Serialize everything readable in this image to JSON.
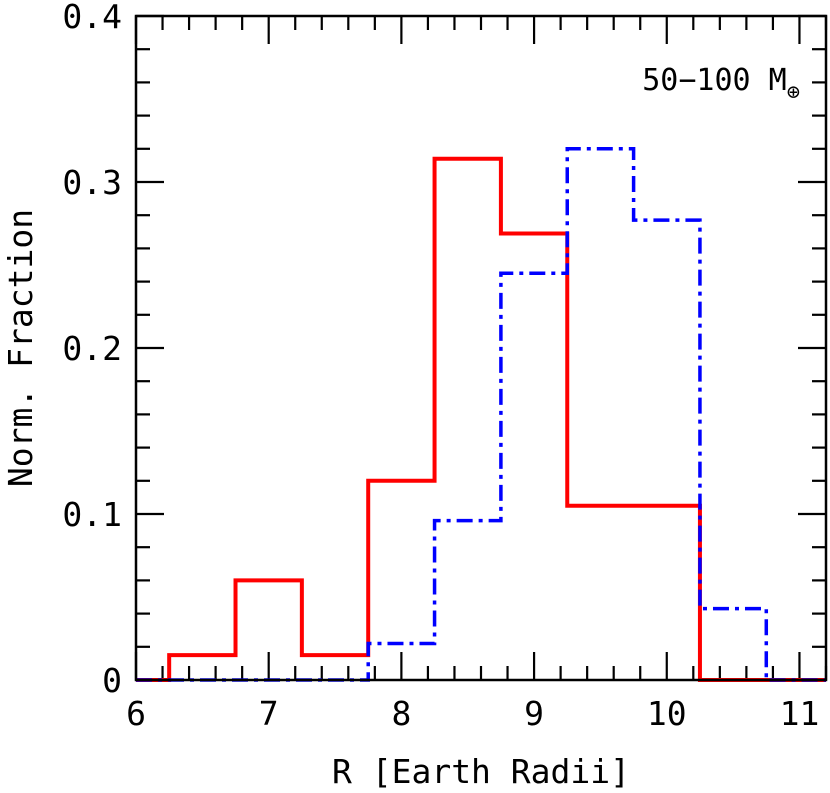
{
  "chart_data": {
    "type": "histogram",
    "title": "",
    "xlabel": "R [Earth Radii]",
    "ylabel": "Norm. Fraction",
    "annotation": {
      "text": "50−100 M",
      "subscript": "⊕",
      "placement": "top-right"
    },
    "xlim": [
      6,
      11.2
    ],
    "ylim": [
      0,
      0.4
    ],
    "xticks": [
      6,
      7,
      8,
      9,
      10,
      11
    ],
    "xtick_labels": [
      "6",
      "7",
      "8",
      "9",
      "10",
      "11"
    ],
    "yticks": [
      0,
      0.1,
      0.2,
      0.3,
      0.4
    ],
    "ytick_labels": [
      "0",
      "0.1",
      "0.2",
      "0.3",
      "0.4"
    ],
    "bin_edges": [
      6.0,
      6.25,
      6.75,
      7.25,
      7.75,
      8.25,
      8.75,
      9.25,
      9.75,
      10.25,
      10.75,
      11.2
    ],
    "grid": false,
    "series": [
      {
        "style": "solid",
        "color": "#ff0000",
        "values": [
          0,
          0.015,
          0.06,
          0.015,
          0.12,
          0.314,
          0.269,
          0.105,
          0.105,
          0,
          0
        ]
      },
      {
        "style": "dash-dot",
        "color": "#0000ff",
        "values": [
          0,
          0,
          0,
          0,
          0.022,
          0.096,
          0.245,
          0.32,
          0.277,
          0.043,
          0
        ]
      }
    ]
  }
}
